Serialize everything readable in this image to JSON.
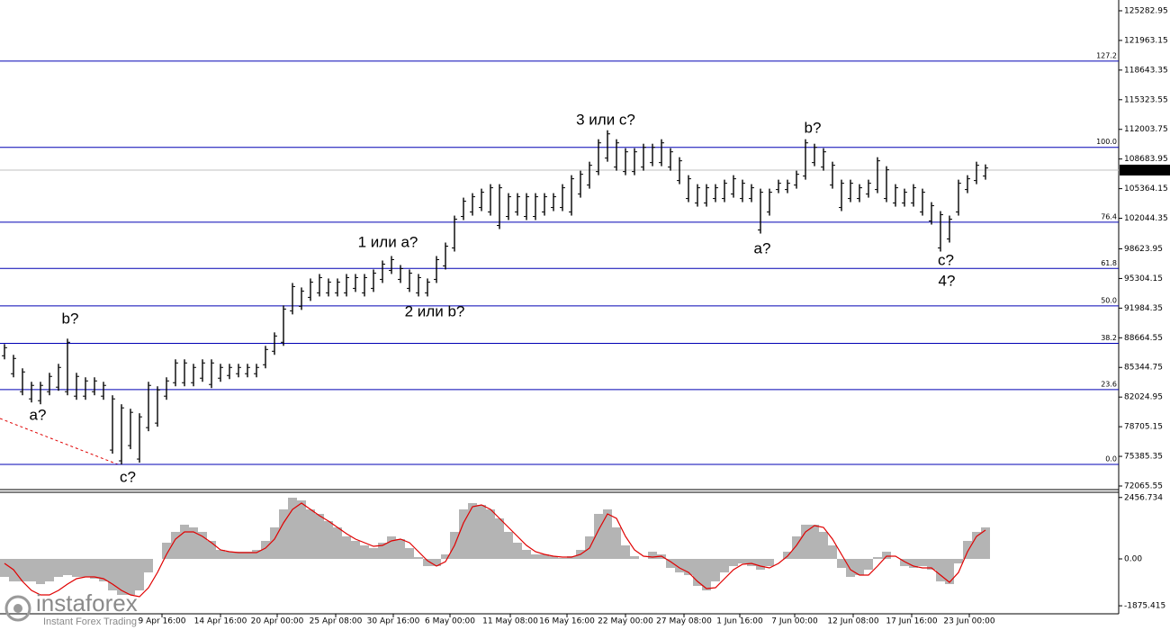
{
  "chart_data": [
    {
      "type": "range",
      "high": [
        87960,
        86753,
        85244,
        83735,
        83735,
        84741,
        85747,
        88564,
        84741,
        84238,
        84238,
        83735,
        82226,
        81220,
        80717,
        80214,
        83735,
        83232,
        84238,
        86250,
        86250,
        85747,
        86250,
        86250,
        85747,
        85747,
        85747,
        85747,
        85747,
        87759,
        89268,
        92286,
        94801,
        94298,
        95304,
        95807,
        95304,
        95304,
        95807,
        95807,
        95807,
        96310,
        97316,
        97819,
        96813,
        96310,
        95807,
        95304,
        97819,
        99328,
        102346,
        104358,
        104861,
        105364,
        105867,
        105867,
        104861,
        104861,
        104861,
        104861,
        104861,
        104861,
        105867,
        106873,
        107376,
        108382,
        110897,
        111903,
        110897,
        109891,
        109891,
        110394,
        110394,
        110897,
        109891,
        108885,
        106873,
        105867,
        105867,
        105867,
        106370,
        106873,
        106370,
        105867,
        105364,
        105364,
        106370,
        106370,
        107376,
        110897,
        110394,
        109891,
        108382,
        106370,
        106370,
        105867,
        106370,
        108885,
        107879,
        105867,
        105364,
        105867,
        105364,
        103855,
        102849,
        102346,
        106370,
        106873,
        108382,
        108080
      ],
      "low": [
        86250,
        84238,
        82226,
        81421,
        81220,
        82226,
        82729,
        82226,
        81723,
        81723,
        82226,
        81723,
        75687,
        74480,
        76190,
        74681,
        78202,
        78705,
        81723,
        83232,
        83232,
        83232,
        83735,
        83031,
        83735,
        84037,
        84238,
        84238,
        84238,
        85244,
        86753,
        87759,
        91280,
        91783,
        92789,
        93292,
        93292,
        93292,
        93292,
        93795,
        93292,
        93795,
        94801,
        95807,
        94801,
        93795,
        93292,
        93292,
        94801,
        96310,
        98322,
        101843,
        102346,
        102849,
        102346,
        100837,
        101843,
        102346,
        101843,
        101843,
        102346,
        102849,
        102849,
        102346,
        104358,
        105364,
        106873,
        108382,
        107376,
        106873,
        106873,
        107376,
        107879,
        107879,
        107376,
        105867,
        103855,
        103352,
        103352,
        103855,
        103855,
        104358,
        103855,
        103855,
        100334,
        102346,
        104861,
        104861,
        105364,
        106370,
        107879,
        107376,
        105364,
        102849,
        103855,
        103855,
        104358,
        104861,
        103855,
        103352,
        103352,
        103352,
        102346,
        101340,
        98322,
        99328,
        102346,
        104861,
        105867,
        106370
      ],
      "color": "#000000",
      "xlim": [
        -0.5,
        123.8
      ],
      "ylim": [
        71663,
        126490
      ],
      "yticks": [
        125282.95,
        121963.15,
        118643.35,
        115323.55,
        112003.75,
        108683.95,
        105364.15,
        102044.35,
        98623.95,
        95304.15,
        91984.35,
        88664.55,
        85344.75,
        82024.95,
        78705.15,
        75385.35,
        72065.55
      ],
      "last_price": 107443.82,
      "level_color": "#0000b4",
      "levels": [
        {
          "value": 119651,
          "label": "127.2"
        },
        {
          "value": 109992,
          "label": "100.0"
        },
        {
          "value": 101611,
          "label": "76.4"
        },
        {
          "value": 96426,
          "label": "61.8"
        },
        {
          "value": 92236,
          "label": "50.0"
        },
        {
          "value": 88046,
          "label": "38.2"
        },
        {
          "value": 82861,
          "label": "23.6"
        },
        {
          "value": 74480,
          "label": "0.0"
        }
      ],
      "annotations": [
        {
          "text": "b?",
          "color": "#0000cc"
        },
        {
          "text": "a?",
          "color": "#0000cc"
        },
        {
          "text": "c?",
          "color": "#0000cc"
        },
        {
          "text": "1 или a?",
          "color": "#0000cc"
        },
        {
          "text": "2 или b?",
          "color": "#0000cc"
        },
        {
          "text": "3 или c?",
          "color": "#0000cc"
        },
        {
          "text": "b?",
          "color": "#cc0000"
        },
        {
          "text": "a?",
          "color": "#cc0000"
        },
        {
          "text": "c?",
          "color": "#cc0000"
        },
        {
          "text": "4?",
          "color": "#0000cc"
        }
      ]
    },
    {
      "type": "macd",
      "histogram": [
        -720,
        -900,
        -900,
        -900,
        -1008,
        -900,
        -720,
        -648,
        -720,
        -720,
        -792,
        -900,
        -1260,
        -1440,
        -1440,
        -1260,
        -540,
        0,
        648,
        1080,
        1368,
        1260,
        1080,
        720,
        360,
        288,
        288,
        288,
        360,
        720,
        1260,
        1980,
        2448,
        2340,
        1980,
        1800,
        1512,
        1260,
        900,
        720,
        540,
        432,
        648,
        900,
        792,
        432,
        72,
        -288,
        -288,
        180,
        1080,
        1980,
        2232,
        2160,
        1980,
        1620,
        1080,
        648,
        360,
        180,
        180,
        108,
        36,
        108,
        360,
        900,
        1800,
        1980,
        1260,
        540,
        108,
        0,
        288,
        180,
        -360,
        -540,
        -648,
        -1080,
        -1260,
        -900,
        -540,
        -288,
        -180,
        -288,
        -432,
        -288,
        0,
        288,
        900,
        1368,
        1368,
        1080,
        540,
        -360,
        -720,
        -648,
        -432,
        72,
        288,
        0,
        -288,
        -360,
        -288,
        -432,
        -900,
        -1008,
        -180,
        720,
        1080,
        1260
      ],
      "signal": [
        -180,
        -432,
        -900,
        -1260,
        -1440,
        -1440,
        -1260,
        -1008,
        -792,
        -720,
        -720,
        -792,
        -1008,
        -1260,
        -1440,
        -1512,
        -1152,
        -540,
        180,
        792,
        1080,
        1080,
        900,
        648,
        360,
        288,
        252,
        252,
        252,
        432,
        792,
        1440,
        1980,
        2232,
        1980,
        1728,
        1512,
        1260,
        1008,
        792,
        648,
        504,
        540,
        720,
        792,
        648,
        288,
        -72,
        -288,
        -108,
        540,
        1440,
        2088,
        2160,
        1980,
        1620,
        1260,
        900,
        540,
        288,
        180,
        108,
        72,
        72,
        180,
        432,
        1152,
        1800,
        1620,
        900,
        360,
        108,
        72,
        108,
        -108,
        -360,
        -540,
        -900,
        -1188,
        -1152,
        -792,
        -432,
        -216,
        -180,
        -288,
        -360,
        -180,
        108,
        540,
        1080,
        1332,
        1260,
        792,
        180,
        -432,
        -648,
        -648,
        -288,
        108,
        108,
        -108,
        -288,
        -360,
        -360,
        -648,
        -936,
        -540,
        288,
        900,
        1152
      ],
      "histogram_color": "#b4b4b4",
      "signal_color": "#e00000",
      "xlim": [
        -0.5,
        123.8
      ],
      "ylim": [
        -2160,
        2628
      ],
      "yticks": [
        2456.734,
        {
          "value": 0,
          "label": "0.00"
        },
        -1875.415
      ],
      "xticks": [
        {
          "value": 17.5,
          "label": "9 Apr 16:00"
        },
        {
          "value": 24,
          "label": "14 Apr 16:00"
        },
        {
          "value": 30.3,
          "label": "20 Apr 00:00"
        },
        {
          "value": 36.8,
          "label": "25 Apr 08:00"
        },
        {
          "value": 43.2,
          "label": "30 Apr 16:00"
        },
        {
          "value": 49.5,
          "label": "6 May 00:00"
        },
        {
          "value": 56.2,
          "label": "11 May 08:00"
        },
        {
          "value": 62.5,
          "label": "16 May 16:00"
        },
        {
          "value": 69,
          "label": "22 May 00:00"
        },
        {
          "value": 75.5,
          "label": "27 May 08:00"
        },
        {
          "value": 81.7,
          "label": "1 Jun 16:00"
        },
        {
          "value": 87.8,
          "label": "7 Jun 00:00"
        },
        {
          "value": 94.3,
          "label": "12 Jun 08:00"
        },
        {
          "value": 100.8,
          "label": "17 Jun 16:00"
        },
        {
          "value": 107.2,
          "label": "23 Jun 00:00"
        }
      ]
    }
  ],
  "watermark": {
    "brand": "instaforex",
    "tagline": "Instant Forex Trading"
  }
}
